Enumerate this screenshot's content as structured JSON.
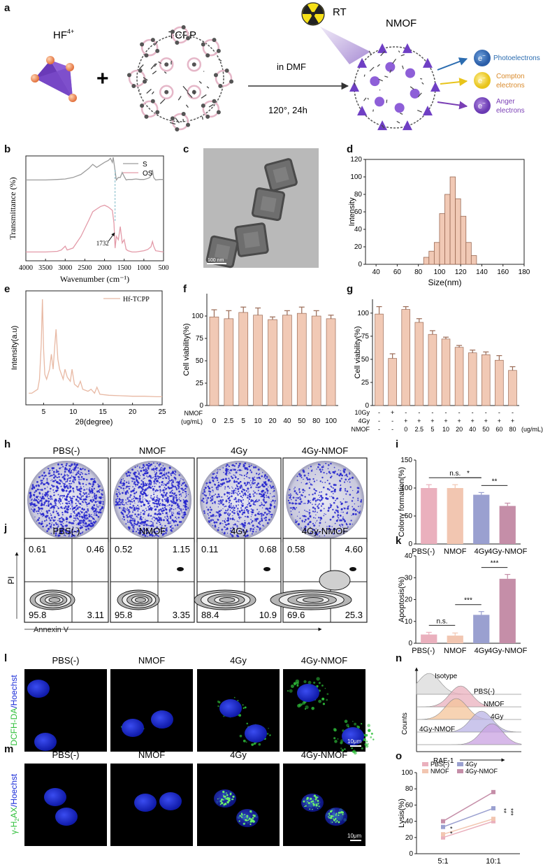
{
  "panel_letters": [
    "a",
    "b",
    "c",
    "d",
    "e",
    "f",
    "g",
    "h",
    "i",
    "j",
    "k",
    "l",
    "m",
    "n",
    "o"
  ],
  "colors": {
    "bar_fill": "#f1c9b5",
    "bar_stroke": "#9a6a55",
    "pbs": "#eab0bd",
    "nmof": "#f2c6b1",
    "g4": "#9aa0d0",
    "g4nmof": "#c58ea8",
    "nucleus": "#1a2cd8",
    "ros": "#2fbf3a",
    "colony": "#2222cc",
    "purple": "#6f3fc4",
    "photo": "#2b6cb0",
    "compton": "#d98a2b",
    "anger": "#7a3fb5"
  },
  "panel_a": {
    "hf_label_main": "HF",
    "hf_label_sup": "4+",
    "tcpp_label": "TCPP",
    "plus": "+",
    "rt_label": "RT",
    "nmof_label": "NMOF",
    "reaction_top": "in DMF",
    "reaction_bottom": "120°, 24h",
    "electron_symbol": "e",
    "electron_sup": "−",
    "electrons": [
      {
        "lines": [
          "Photoelectrons"
        ],
        "color": "#2b6cb0"
      },
      {
        "lines": [
          "Compton",
          "electrons"
        ],
        "color": "#d98a2b"
      },
      {
        "lines": [
          "Anger",
          "electrons"
        ],
        "color": "#7a3fb5"
      }
    ]
  },
  "chart_data": [
    {
      "panel": "b",
      "type": "line",
      "xlabel": "Wavenumber (cm⁻¹)",
      "ylabel": "Transmittance (%)",
      "xlim": [
        4000,
        500
      ],
      "xticks": [
        "4000",
        "3500",
        "3000",
        "2500",
        "2000",
        "1500",
        "1000",
        "500"
      ],
      "legend": [
        "S",
        "OS"
      ],
      "annotation": "1732",
      "series": [
        {
          "name": "S",
          "color": "#9c9c9c",
          "x": [
            4000,
            3500,
            3200,
            3000,
            2800,
            2600,
            2400,
            2300,
            2200,
            2000,
            1900,
            1850,
            1800,
            1780,
            1700,
            1650,
            1600,
            1550,
            1500,
            1450,
            1400,
            1300,
            1200,
            1100,
            1000,
            900,
            850,
            800,
            780,
            750,
            700,
            600,
            500
          ],
          "y": [
            0.55,
            0.55,
            0.56,
            0.57,
            0.6,
            0.66,
            0.78,
            0.86,
            0.8,
            0.9,
            0.94,
            0.98,
            0.9,
            1.0,
            0.55,
            0.6,
            0.6,
            0.7,
            0.62,
            0.55,
            0.56,
            0.56,
            0.57,
            0.56,
            0.56,
            0.58,
            0.6,
            0.68,
            0.75,
            0.6,
            0.55,
            0.56,
            0.56
          ]
        },
        {
          "name": "OS",
          "color": "#e39aa8",
          "x": [
            4000,
            3500,
            3200,
            3100,
            3000,
            2950,
            2800,
            2600,
            2400,
            2300,
            2200,
            2100,
            2000,
            1900,
            1800,
            1760,
            1732,
            1700,
            1650,
            1600,
            1550,
            1500,
            1450,
            1400,
            1300,
            1200,
            1100,
            1000,
            900,
            820,
            780,
            750,
            700,
            600,
            500
          ],
          "y": [
            0.06,
            0.06,
            0.07,
            0.09,
            0.15,
            0.09,
            0.12,
            0.3,
            0.55,
            0.68,
            0.72,
            0.76,
            0.78,
            0.75,
            0.7,
            0.5,
            0.12,
            0.3,
            0.25,
            0.45,
            0.2,
            0.25,
            0.1,
            0.08,
            0.06,
            0.06,
            0.07,
            0.08,
            0.1,
            0.14,
            0.22,
            0.15,
            0.08,
            0.07,
            0.06
          ]
        }
      ]
    },
    {
      "panel": "d",
      "type": "bar",
      "xlabel": "Size(nm)",
      "ylabel": "Intensity",
      "xlim": [
        30,
        180
      ],
      "ylim": [
        0,
        120
      ],
      "xticks": [
        40,
        60,
        80,
        100,
        120,
        140,
        160,
        180
      ],
      "yticks": [
        0,
        20,
        40,
        60,
        80,
        100,
        120
      ],
      "bin_width": 5,
      "bins": [
        85,
        90,
        95,
        100,
        105,
        110,
        115,
        120,
        125,
        130
      ],
      "values": [
        8,
        15,
        25,
        58,
        80,
        100,
        75,
        55,
        25,
        10
      ]
    },
    {
      "panel": "e",
      "type": "line",
      "xlabel": "2θ(degree)",
      "ylabel": "Intensity(a.u)",
      "xlim": [
        2,
        25
      ],
      "xticks": [
        5,
        10,
        15,
        20,
        25
      ],
      "legend": [
        "Hf-TCPP"
      ],
      "series": [
        {
          "name": "Hf-TCPP",
          "color": "#e8b9a4",
          "x": [
            2.5,
            3,
            3.5,
            4,
            4.3,
            4.6,
            4.8,
            5,
            5.2,
            5.5,
            6,
            6.3,
            6.6,
            6.9,
            7.1,
            7.4,
            7.7,
            8.3,
            8.6,
            9,
            9.5,
            9.8,
            10.2,
            10.8,
            11.2,
            11.6,
            12.5,
            13,
            13.6,
            14,
            14.5,
            16,
            18,
            20,
            22,
            24,
            25
          ],
          "y": [
            0.06,
            0.06,
            0.08,
            0.1,
            0.2,
            0.55,
            1.0,
            0.5,
            0.25,
            0.2,
            0.3,
            0.45,
            0.3,
            0.55,
            0.7,
            0.4,
            0.3,
            0.2,
            0.3,
            0.22,
            0.18,
            0.3,
            0.15,
            0.12,
            0.18,
            0.1,
            0.08,
            0.1,
            0.06,
            0.12,
            0.05,
            0.04,
            0.035,
            0.03,
            0.03,
            0.025,
            0.025
          ]
        }
      ]
    },
    {
      "panel": "f",
      "type": "bar",
      "ylabel": "Cell viability(%)",
      "ylim": [
        0,
        125
      ],
      "yticks": [
        0,
        25,
        50,
        75,
        100
      ],
      "row_label": [
        "NMOF",
        "(ug/mL)"
      ],
      "categories": [
        "0",
        "2.5",
        "5",
        "10",
        "20",
        "40",
        "50",
        "80",
        "100"
      ],
      "values": [
        99,
        97,
        104,
        101,
        96,
        101,
        103,
        100,
        97
      ],
      "errors": [
        8,
        9,
        6,
        8,
        3,
        5,
        7,
        6,
        4
      ]
    },
    {
      "panel": "g",
      "type": "bar",
      "ylabel": "Cell viability(%)",
      "ylim": [
        0,
        115
      ],
      "yticks": [
        0,
        25,
        50,
        75,
        100
      ],
      "row_labels": [
        "10Gy",
        "4Gy",
        "NMOF"
      ],
      "unit": "(ug/mL)",
      "rows": [
        [
          "-",
          "+",
          "-",
          "-",
          "-",
          "-",
          "-",
          "-",
          "-",
          "-",
          "-"
        ],
        [
          "-",
          "-",
          "+",
          "+",
          "+",
          "+",
          "+",
          "+",
          "+",
          "+",
          "+"
        ],
        [
          "-",
          "-",
          "0",
          "2.5",
          "5",
          "10",
          "20",
          "40",
          "50",
          "60",
          "80"
        ]
      ],
      "values": [
        99,
        51,
        104,
        90,
        77,
        72,
        63,
        57,
        55,
        49,
        38
      ],
      "errors": [
        8,
        5,
        3,
        4,
        4,
        2,
        2,
        3,
        3,
        5,
        4
      ]
    },
    {
      "panel": "i",
      "type": "bar",
      "ylabel": "Colony formation(%)",
      "ylim": [
        0,
        150
      ],
      "yticks": [
        0,
        50,
        100,
        150
      ],
      "categories": [
        "PBS(-)",
        "NMOF",
        "4Gy",
        "4Gy-NMOF"
      ],
      "values": [
        100,
        100,
        88,
        68
      ],
      "errors": [
        6,
        6,
        4,
        5
      ],
      "colors": [
        "#eab0bd",
        "#f2c6b1",
        "#9aa0d0",
        "#c58ea8"
      ],
      "brackets": [
        {
          "from": 0,
          "to": 2,
          "label": "n.s."
        },
        {
          "from": 1,
          "to": 2,
          "label": "*"
        },
        {
          "from": 2,
          "to": 3,
          "label": "**"
        }
      ]
    },
    {
      "panel": "k",
      "type": "bar",
      "ylabel": "Apoptosis(%)",
      "ylim": [
        0,
        40
      ],
      "yticks": [
        0,
        10,
        20,
        30,
        40
      ],
      "categories": [
        "PBS(-)",
        "NMOF",
        "4Gy",
        "4Gy-NMOF"
      ],
      "values": [
        4,
        3.5,
        13,
        29.5
      ],
      "errors": [
        1,
        1.2,
        1.5,
        2
      ],
      "colors": [
        "#eab0bd",
        "#f2c6b1",
        "#9aa0d0",
        "#c58ea8"
      ],
      "brackets": [
        {
          "from": 0,
          "to": 1,
          "label": "n.s."
        },
        {
          "from": 1,
          "to": 2,
          "label": "***"
        },
        {
          "from": 2,
          "to": 3,
          "label": "***"
        }
      ]
    },
    {
      "panel": "o",
      "type": "line",
      "ylabel": "Lysis(%)",
      "ylim": [
        0,
        100
      ],
      "yticks": [
        0,
        20,
        40,
        60,
        80,
        100
      ],
      "categories": [
        "5:1",
        "10:1"
      ],
      "series": [
        {
          "name": "PBS(-)",
          "color": "#eab0bd",
          "values": [
            20,
            40
          ]
        },
        {
          "name": "NMOF",
          "color": "#f2c6b1",
          "values": [
            24,
            43
          ]
        },
        {
          "name": "4Gy",
          "color": "#9aa0d0",
          "values": [
            33,
            56
          ]
        },
        {
          "name": "4Gy-NMOF",
          "color": "#c58ea8",
          "values": [
            40,
            76
          ]
        }
      ],
      "sig_5": [
        "*",
        "*"
      ],
      "sig_10": [
        "**",
        "***"
      ]
    }
  ],
  "panel_c": {
    "scale": "100 nm"
  },
  "panel_h": {
    "groups": [
      "PBS(-)",
      "NMOF",
      "4Gy",
      "4Gy-NMOF"
    ],
    "densities": [
      900,
      950,
      700,
      420
    ]
  },
  "panel_j": {
    "groups": [
      "PBS(-)",
      "NMOF",
      "4Gy",
      "4Gy-NMOF"
    ],
    "quadrants": [
      {
        "ul": "0.61",
        "ur": "0.46",
        "ll": "95.8",
        "lr": "3.11"
      },
      {
        "ul": "0.52",
        "ur": "1.15",
        "ll": "95.8",
        "lr": "3.35"
      },
      {
        "ul": "0.11",
        "ur": "0.68",
        "ll": "88.4",
        "lr": "10.9"
      },
      {
        "ul": "0.58",
        "ur": "4.60",
        "ll": "69.6",
        "lr": "25.3"
      }
    ],
    "ylabel": "PI",
    "xlabel": "Annexin V"
  },
  "panel_l": {
    "groups": [
      "PBS(-)",
      "NMOF",
      "4Gy",
      "4Gy-NMOF"
    ],
    "ylabel_green": "DCFH-DA",
    "ylabel_blue": "/Hoechst",
    "scale": "10μm",
    "green_level": [
      0.1,
      0.3,
      0.6,
      1.0
    ]
  },
  "panel_m": {
    "groups": [
      "PBS(-)",
      "NMOF",
      "4Gy",
      "4Gy-NMOF"
    ],
    "ylabel_green": "γ-H",
    "ylabel_sub": "2",
    "ylabel_green2": "AX",
    "ylabel_blue": "/Hoechst",
    "scale": "10μm",
    "green_level": [
      0,
      0,
      0.6,
      1.0
    ]
  },
  "panel_n": {
    "labels": [
      "Isotype",
      "PBS(-)",
      "NMOF",
      "4Gy",
      "4Gy-NMOF"
    ],
    "colors": [
      "#d9d9d9",
      "#eab0bd",
      "#f4c49a",
      "#b9b3e6",
      "#c9a2e2"
    ],
    "peaks": [
      0.12,
      0.42,
      0.38,
      0.62,
      0.72
    ],
    "xlabel": "RAE-1",
    "ylabel": "Counts"
  }
}
